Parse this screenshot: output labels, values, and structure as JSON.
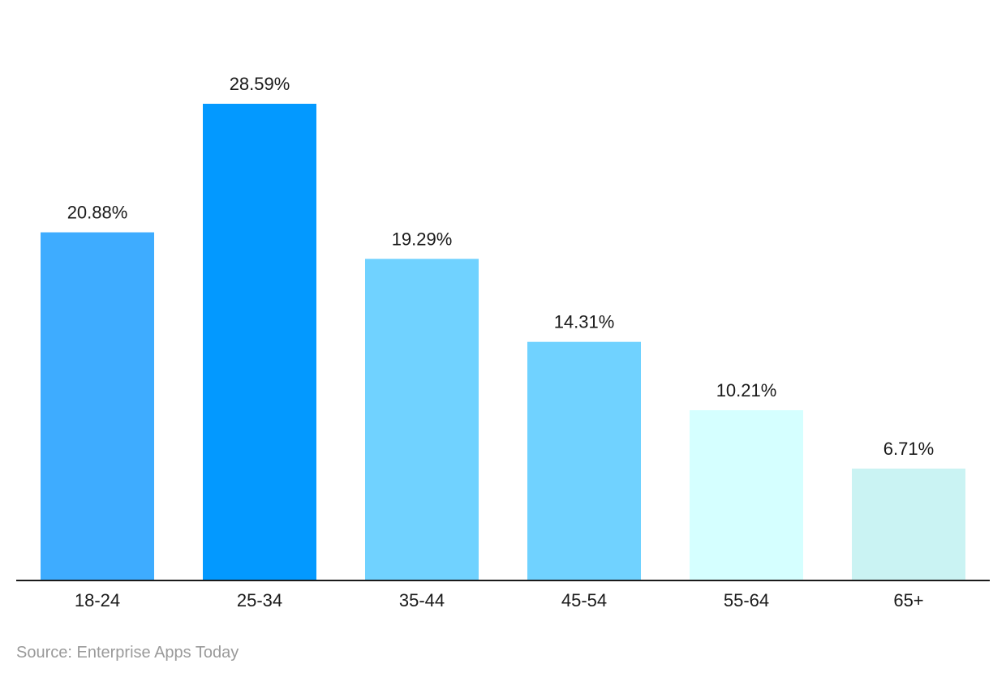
{
  "chart_data": {
    "type": "bar",
    "title": "",
    "xlabel": "",
    "ylabel": "",
    "categories": [
      "18-24",
      "25-34",
      "35-44",
      "45-54",
      "55-64",
      "65+"
    ],
    "values": [
      20.88,
      28.59,
      19.29,
      14.31,
      10.21,
      6.71
    ],
    "value_labels": [
      "20.88%",
      "28.59%",
      "19.29%",
      "14.31%",
      "10.21%",
      "6.71%"
    ],
    "bar_colors": [
      "#3eacff",
      "#0399ff",
      "#70d2ff",
      "#70d2ff",
      "#d5ffff",
      "#caf3f3"
    ],
    "ylim": [
      0,
      28.59
    ],
    "grid": false,
    "legend": "none"
  },
  "source": "Source: Enterprise Apps Today"
}
